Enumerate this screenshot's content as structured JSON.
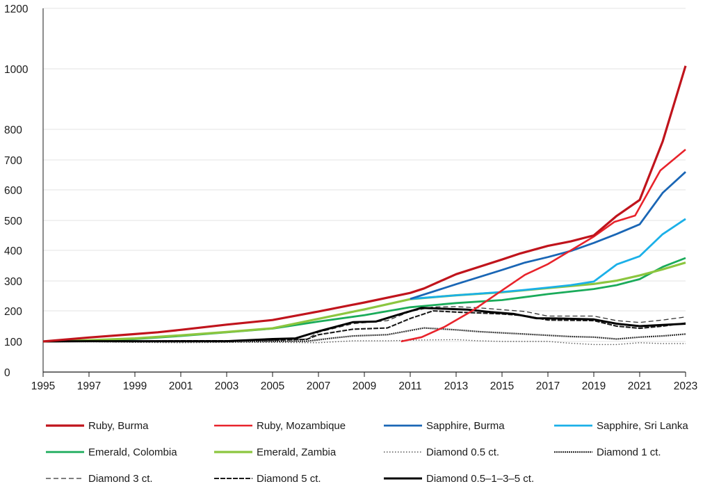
{
  "chart_data": {
    "type": "line",
    "title": "",
    "xlabel": "",
    "ylabel": "",
    "x_ticks": [
      "1995",
      "1997",
      "1999",
      "2001",
      "2003",
      "2005",
      "2007",
      "2009",
      "2011",
      "2013",
      "2015",
      "2017",
      "2019",
      "2021",
      "2023"
    ],
    "y_ticks": [
      "0",
      "100",
      "200",
      "300",
      "400",
      "500",
      "600",
      "700",
      "800",
      "1000",
      "1200"
    ],
    "grid": "horizontal",
    "legend_position": "bottom",
    "series": [
      {
        "name": "Ruby, Burma",
        "color": "#c0141c",
        "dash": "solid",
        "width": 3.2,
        "points": [
          [
            1995,
            100
          ],
          [
            1997,
            113
          ],
          [
            1999,
            124
          ],
          [
            2000,
            130
          ],
          [
            2001,
            138
          ],
          [
            2003,
            155
          ],
          [
            2005,
            170
          ],
          [
            2007,
            198
          ],
          [
            2009,
            228
          ],
          [
            2011,
            260
          ],
          [
            2011.6,
            275
          ],
          [
            2013,
            322
          ],
          [
            2015,
            370
          ],
          [
            2015.8,
            390
          ],
          [
            2017,
            415
          ],
          [
            2018,
            430
          ],
          [
            2019,
            450
          ],
          [
            2020,
            515
          ],
          [
            2021,
            567
          ],
          [
            2022,
            760
          ],
          [
            2023,
            1010
          ]
        ]
      },
      {
        "name": "Ruby, Mozambique",
        "color": "#e8232b",
        "dash": "solid",
        "width": 2.6,
        "points": [
          [
            2010.6,
            100
          ],
          [
            2011.5,
            114
          ],
          [
            2012.5,
            148
          ],
          [
            2013.7,
            200
          ],
          [
            2014.8,
            258
          ],
          [
            2016,
            320
          ],
          [
            2017,
            355
          ],
          [
            2018,
            400
          ],
          [
            2019,
            446
          ],
          [
            2019.9,
            495
          ],
          [
            2020.8,
            516
          ],
          [
            2021.9,
            665
          ],
          [
            2023,
            734
          ]
        ]
      },
      {
        "name": "Sapphire, Burma",
        "color": "#1a66b5",
        "dash": "solid",
        "width": 2.8,
        "points": [
          [
            2011,
            240
          ],
          [
            2013,
            289
          ],
          [
            2015,
            336
          ],
          [
            2016,
            360
          ],
          [
            2017,
            378
          ],
          [
            2018,
            398
          ],
          [
            2019,
            425
          ],
          [
            2020,
            455
          ],
          [
            2021,
            487
          ],
          [
            2022,
            590
          ],
          [
            2023,
            660
          ]
        ]
      },
      {
        "name": "Sapphire, Sri Lanka",
        "color": "#1bb0e8",
        "dash": "solid",
        "width": 2.8,
        "points": [
          [
            2011,
            240
          ],
          [
            2013,
            252
          ],
          [
            2015,
            263
          ],
          [
            2016,
            270
          ],
          [
            2017,
            278
          ],
          [
            2018,
            286
          ],
          [
            2019,
            298
          ],
          [
            2020,
            354
          ],
          [
            2021,
            381
          ],
          [
            2022,
            454
          ],
          [
            2023,
            505
          ]
        ]
      },
      {
        "name": "Emerald, Colombia",
        "color": "#1aab5a",
        "dash": "solid",
        "width": 2.8,
        "points": [
          [
            1995,
            100
          ],
          [
            1997,
            102
          ],
          [
            1999,
            108
          ],
          [
            2001,
            118
          ],
          [
            2003,
            130
          ],
          [
            2005,
            142
          ],
          [
            2007,
            165
          ],
          [
            2009,
            186
          ],
          [
            2011,
            212
          ],
          [
            2013,
            226
          ],
          [
            2015,
            236
          ],
          [
            2016,
            246
          ],
          [
            2017,
            256
          ],
          [
            2019,
            273
          ],
          [
            2020,
            286
          ],
          [
            2021,
            306
          ],
          [
            2022,
            346
          ],
          [
            2023,
            375
          ]
        ]
      },
      {
        "name": "Emerald, Zambia",
        "color": "#8cc63f",
        "dash": "solid",
        "width": 3.2,
        "points": [
          [
            1995,
            100
          ],
          [
            1997,
            104
          ],
          [
            1999,
            110
          ],
          [
            2001,
            120
          ],
          [
            2003,
            131
          ],
          [
            2005,
            143
          ],
          [
            2007,
            174
          ],
          [
            2009,
            205
          ],
          [
            2011,
            239
          ],
          [
            2013,
            252
          ],
          [
            2015,
            262
          ],
          [
            2017,
            276
          ],
          [
            2019,
            290
          ],
          [
            2020,
            301
          ],
          [
            2021,
            318
          ],
          [
            2022,
            338
          ],
          [
            2023,
            360
          ]
        ]
      },
      {
        "name": "Diamond 0.5 ct.",
        "color": "#555555",
        "dash": "1.5 2.5",
        "width": 1.4,
        "points": [
          [
            1995,
            100
          ],
          [
            1997,
            99
          ],
          [
            1999,
            97
          ],
          [
            2001,
            96
          ],
          [
            2003,
            97
          ],
          [
            2005,
            97
          ],
          [
            2007,
            96
          ],
          [
            2008.5,
            102
          ],
          [
            2010,
            102
          ],
          [
            2011,
            104
          ],
          [
            2013,
            106
          ],
          [
            2014,
            102
          ],
          [
            2015,
            100
          ],
          [
            2016,
            100
          ],
          [
            2017,
            100
          ],
          [
            2018,
            94
          ],
          [
            2019,
            90
          ],
          [
            2020,
            90
          ],
          [
            2021,
            96
          ],
          [
            2022,
            93
          ],
          [
            2023,
            93
          ]
        ]
      },
      {
        "name": "Diamond 1 ct.",
        "color": "#333333",
        "dash": "2 1",
        "width": 2.2,
        "points": [
          [
            1995,
            100
          ],
          [
            1997,
            100
          ],
          [
            1999,
            99
          ],
          [
            2001,
            99
          ],
          [
            2003,
            99
          ],
          [
            2005,
            100
          ],
          [
            2006.5,
            101
          ],
          [
            2007.5,
            110
          ],
          [
            2008.5,
            118
          ],
          [
            2010,
            122
          ],
          [
            2011.6,
            144
          ],
          [
            2013,
            138
          ],
          [
            2014,
            132
          ],
          [
            2016,
            124
          ],
          [
            2017,
            120
          ],
          [
            2018,
            116
          ],
          [
            2019,
            114
          ],
          [
            2020,
            108
          ],
          [
            2021,
            114
          ],
          [
            2022,
            118
          ],
          [
            2023,
            124
          ]
        ]
      },
      {
        "name": "Diamond 3 ct.",
        "color": "#333333",
        "dash": "7 4",
        "width": 1.3,
        "points": [
          [
            1995,
            100
          ],
          [
            1997,
            101
          ],
          [
            1999,
            102
          ],
          [
            2001,
            102
          ],
          [
            2003,
            101
          ],
          [
            2005,
            103
          ],
          [
            2006.5,
            108
          ],
          [
            2007,
            130
          ],
          [
            2008.5,
            158
          ],
          [
            2010,
            168
          ],
          [
            2011,
            198
          ],
          [
            2012,
            213
          ],
          [
            2013,
            214
          ],
          [
            2014,
            210
          ],
          [
            2016,
            198
          ],
          [
            2017,
            183
          ],
          [
            2019,
            183
          ],
          [
            2020,
            168
          ],
          [
            2021,
            162
          ],
          [
            2022,
            170
          ],
          [
            2023,
            180
          ]
        ]
      },
      {
        "name": "Diamond 5 ct.",
        "color": "#1a1a1a",
        "dash": "7 2",
        "width": 2.1,
        "points": [
          [
            1995,
            100
          ],
          [
            1997,
            101
          ],
          [
            1999,
            101
          ],
          [
            2001,
            102
          ],
          [
            2003,
            102
          ],
          [
            2005,
            104
          ],
          [
            2006.5,
            107
          ],
          [
            2007,
            122
          ],
          [
            2008.5,
            140
          ],
          [
            2010,
            144
          ],
          [
            2011,
            175
          ],
          [
            2012,
            200
          ],
          [
            2013,
            196
          ],
          [
            2014,
            193
          ],
          [
            2015,
            190
          ],
          [
            2016,
            184
          ],
          [
            2017,
            170
          ],
          [
            2019,
            168
          ],
          [
            2020,
            150
          ],
          [
            2021,
            143
          ],
          [
            2022,
            150
          ],
          [
            2023,
            160
          ]
        ]
      },
      {
        "name": "Diamond 0.5–1–3–5 ct.",
        "color": "#000000",
        "dash": "solid",
        "width": 3,
        "points": [
          [
            1995,
            100
          ],
          [
            1997,
            101
          ],
          [
            1999,
            101
          ],
          [
            2001,
            101
          ],
          [
            2003,
            101
          ],
          [
            2005,
            108
          ],
          [
            2006,
            110
          ],
          [
            2007,
            133
          ],
          [
            2008.5,
            163
          ],
          [
            2009.5,
            165
          ],
          [
            2010.5,
            188
          ],
          [
            2011.5,
            210
          ],
          [
            2012.5,
            207
          ],
          [
            2013.5,
            204
          ],
          [
            2014.5,
            196
          ],
          [
            2015.5,
            190
          ],
          [
            2016.5,
            176
          ],
          [
            2017.5,
            175
          ],
          [
            2019,
            172
          ],
          [
            2020,
            158
          ],
          [
            2021,
            150
          ],
          [
            2022,
            154
          ],
          [
            2023,
            158
          ]
        ]
      }
    ]
  }
}
